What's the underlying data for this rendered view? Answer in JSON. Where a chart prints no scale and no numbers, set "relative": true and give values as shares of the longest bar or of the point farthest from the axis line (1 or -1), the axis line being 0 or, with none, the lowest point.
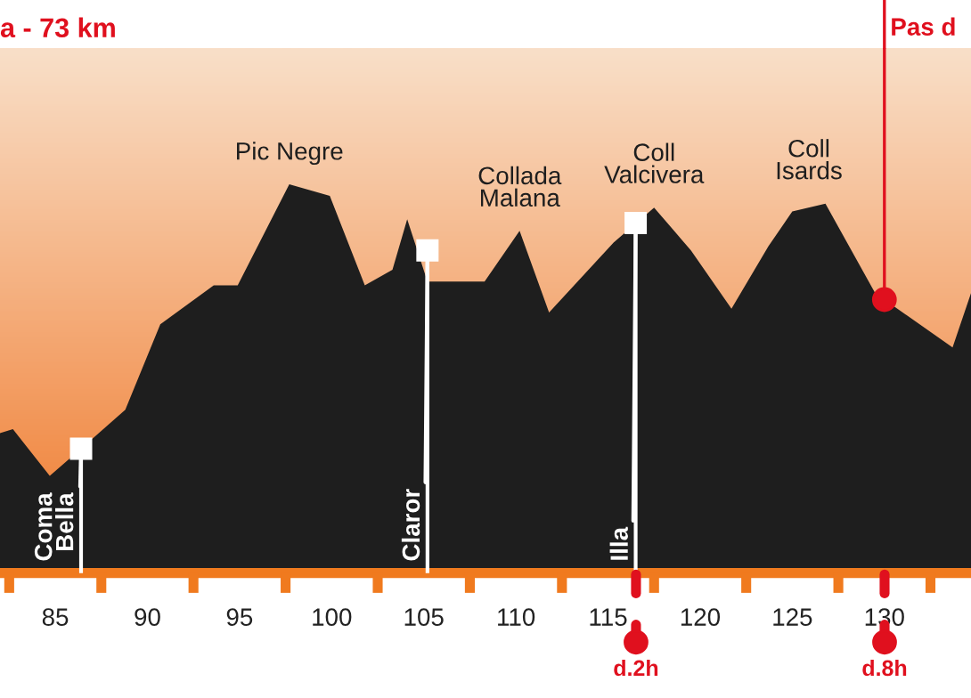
{
  "chart_data": {
    "type": "area",
    "title": "a - 73 km",
    "relative": true,
    "color": "#1e1e1e",
    "x": [
      82.0,
      82.7,
      84.7,
      86.4,
      88.8,
      90.7,
      93.6,
      94.9,
      97.7,
      99.9,
      101.8,
      103.3,
      104.1,
      105.2,
      108.3,
      110.2,
      111.8,
      115.3,
      117.5,
      119.5,
      121.7,
      123.7,
      125.0,
      126.8,
      129.5,
      133.7,
      134.7
    ],
    "values": [
      0.36,
      0.37,
      0.25,
      0.32,
      0.42,
      0.64,
      0.74,
      0.74,
      1.0,
      0.97,
      0.74,
      0.78,
      0.91,
      0.75,
      0.75,
      0.88,
      0.67,
      0.85,
      0.94,
      0.83,
      0.68,
      0.84,
      0.93,
      0.95,
      0.72,
      0.58,
      0.72
    ],
    "xlim": [
      82.0,
      134.7
    ],
    "xticks": [
      {
        "value": 82.5,
        "label": null
      },
      {
        "value": 85,
        "label": "85"
      },
      {
        "value": 87.5,
        "label": null
      },
      {
        "value": 90,
        "label": "90"
      },
      {
        "value": 92.5,
        "label": null
      },
      {
        "value": 95,
        "label": "95"
      },
      {
        "value": 97.5,
        "label": null
      },
      {
        "value": 100,
        "label": "100"
      },
      {
        "value": 102.5,
        "label": null
      },
      {
        "value": 105,
        "label": "105"
      },
      {
        "value": 107.5,
        "label": null
      },
      {
        "value": 110,
        "label": "110"
      },
      {
        "value": 112.5,
        "label": null
      },
      {
        "value": 115,
        "label": "115"
      },
      {
        "value": 117.5,
        "label": null
      },
      {
        "value": 120,
        "label": "120"
      },
      {
        "value": 122.5,
        "label": null
      },
      {
        "value": 125,
        "label": "125"
      },
      {
        "value": 127.5,
        "label": null
      },
      {
        "value": 130,
        "label": "130"
      },
      {
        "value": 132.5,
        "label": null
      }
    ],
    "annotations": [
      {
        "text": "Pic Negre",
        "x": 97.7,
        "y": 1.0
      },
      {
        "text": "Collada\nMalana",
        "x": 110.2,
        "y": 0.88
      },
      {
        "text": "Coll\nValcivera",
        "x": 117.5,
        "y": 0.94
      },
      {
        "text": "Coll\nIsards",
        "x": 125.9,
        "y": 0.95
      },
      {
        "text": "Coma\nBella",
        "x": 86.4,
        "y": 0.32
      },
      {
        "text": "Claror",
        "x": 105.2,
        "y": 0.83
      },
      {
        "text": "Illa",
        "x": 116.5,
        "y": 0.9
      },
      "d.2h",
      "d.8h"
    ],
    "ref_lines": [
      {
        "axis": "x",
        "value": 130,
        "label": "Pas d",
        "color": "#e0101e"
      }
    ]
  }
}
